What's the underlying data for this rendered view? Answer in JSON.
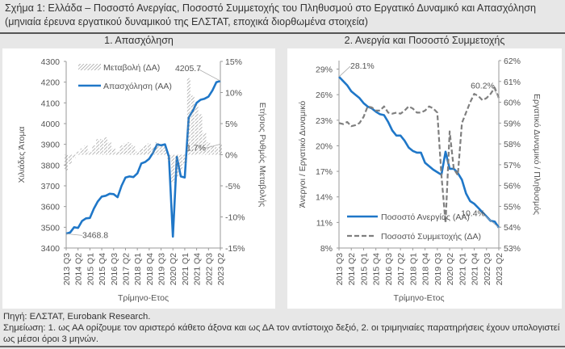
{
  "title": "Σχήμα 1: Ελλάδα – Ποσοστό Ανεργίας, Ποσοστό Συμμετοχής του Πληθυσμού στο Εργατικό Δυναμικό και Απασχόληση (μηνιαία έρευνα εργατικού δυναμικού της ΕΛΣΤΑΤ, εποχικά διορθωμένα στοιχεία)",
  "footer": {
    "source": "Πηγή: ΕΛΣΤΑΤ, Eurobank Research.",
    "note": "Σημείωση: 1. ως ΑΑ ορίζουμε τον αριστερό κάθετο άξονα και ως ΔΑ τον αντίστοιχο δεξιό, 2. οι τριμηνιαίες παρατηρήσεις έχουν υπολογιστεί ως μέσοι όροι 3 μηνών."
  },
  "colors": {
    "primary": "#1f77c8",
    "secondary": "#7f7f7f",
    "hatch": "#8c8c8c"
  },
  "chart_data": [
    {
      "type": "line",
      "title": "1. Απασχόληση",
      "xlabel": "Τρίμηνο-Ετος",
      "ylabel": "Χιλιάδες Άτομα",
      "y2label": "Ετήσιος Ρυθμός Μεταβολής",
      "ylim": [
        3400,
        4300
      ],
      "yticks": [
        3400,
        3500,
        3600,
        3700,
        3800,
        3900,
        4000,
        4100,
        4200,
        4300
      ],
      "y2lim": [
        -15,
        15
      ],
      "y2ticks": [
        "-15%",
        "-10%",
        "-5%",
        "0%",
        "5%",
        "10%",
        "15%"
      ],
      "y2tickvalues": [
        -15,
        -10,
        -5,
        0,
        5,
        10,
        15
      ],
      "xticks": [
        "2013 Q3",
        "2014 Q2",
        "2015 Q1",
        "2015 Q4",
        "2016 Q3",
        "2017 Q2",
        "2018 Q1",
        "2018 Q4",
        "2019 Q3",
        "2020 Q2",
        "2021 Q1",
        "2021 Q4",
        "2022 Q3",
        "2023 Q2"
      ],
      "legend": [
        "Μεταβολή (ΔΑ)",
        "Απασχόληση (ΑΑ)"
      ],
      "legend_position": "top-left",
      "series": [
        {
          "name": "Απασχόληση (ΑΑ)",
          "type": "line",
          "axis": "left",
          "values": [
            3468.8,
            3475,
            3500,
            3497,
            3530,
            3543,
            3545,
            3590,
            3625,
            3648,
            3652,
            3662,
            3660,
            3645,
            3700,
            3740,
            3745,
            3742,
            3760,
            3808,
            3815,
            3830,
            3860,
            3900,
            3895,
            3900,
            3840,
            3455,
            3840,
            3745,
            3740,
            4030,
            4060,
            4100,
            4115,
            4120,
            4130,
            4160,
            4200,
            4205.7
          ]
        },
        {
          "name": "Μεταβολή (ΔΑ)",
          "type": "bar",
          "axis": "right",
          "values": [
            -2.5,
            -1.5,
            -0.5,
            0.5,
            1.0,
            1.5,
            0.5,
            1.5,
            2.5,
            2.5,
            2.8,
            2.0,
            1.0,
            0.5,
            1.5,
            1.8,
            2.0,
            1.5,
            0.5,
            1.0,
            1.5,
            1.8,
            1.2,
            2.0,
            1.5,
            1.2,
            -1.0,
            -4.5,
            -3.5,
            -2.5,
            -1.5,
            12.3,
            9.5,
            8.0,
            6.5,
            3.5,
            2.0,
            1.5,
            1.2,
            1.7
          ]
        }
      ],
      "annotations": [
        {
          "text": "4205.7",
          "series": 0,
          "index": 39
        },
        {
          "text": "3468.8",
          "series": 0,
          "index": 0
        },
        {
          "text": "1.7%",
          "series": 1,
          "index": 39
        }
      ]
    },
    {
      "type": "line",
      "title": "2. Ανεργία και Ποσοστό Συμμετοχής",
      "xlabel": "Τρίμηνο-Ετος",
      "ylabel": "Άνεργοι / Εργατικό Δυναμικό",
      "y2label": "Εργατικό Δυναμικό / Πληθυσμός",
      "ylim": [
        8,
        30
      ],
      "yticks": [
        "8%",
        "11%",
        "14%",
        "17%",
        "20%",
        "23%",
        "26%",
        "29%"
      ],
      "ytickvalues": [
        8,
        11,
        14,
        17,
        20,
        23,
        26,
        29
      ],
      "y2lim": [
        53,
        62
      ],
      "y2ticks": [
        "53%",
        "54%",
        "55%",
        "56%",
        "57%",
        "58%",
        "59%",
        "60%",
        "61%",
        "62%"
      ],
      "y2tickvalues": [
        53,
        54,
        55,
        56,
        57,
        58,
        59,
        60,
        61,
        62
      ],
      "xticks": [
        "2013 Q3",
        "2014 Q2",
        "2015 Q1",
        "2015 Q4",
        "2016 Q3",
        "2017 Q2",
        "2018 Q1",
        "2018 Q4",
        "2019 Q3",
        "2020 Q2",
        "2021 Q1",
        "2021 Q4",
        "2022 Q3",
        "2023 Q2"
      ],
      "legend": [
        "Ποσοστό Ανεργίας (ΑΑ)",
        "Ποσοστό Συμμετοχής (ΔΑ)"
      ],
      "legend_position": "bottom-left",
      "series": [
        {
          "name": "Ποσοστό Ανεργίας (ΑΑ)",
          "type": "line",
          "axis": "left",
          "values": [
            28.1,
            27.6,
            27.1,
            26.4,
            26.0,
            25.6,
            25.0,
            24.6,
            24.4,
            24.0,
            23.7,
            23.6,
            22.8,
            21.8,
            21.2,
            21.2,
            20.6,
            19.8,
            19.4,
            19.2,
            19.2,
            18.0,
            17.6,
            17.2,
            16.9,
            16.6,
            19.3,
            17.3,
            17.3,
            16.8,
            16.0,
            14.4,
            13.5,
            13.2,
            12.7,
            12.2,
            11.7,
            11.2,
            11.1,
            10.4
          ]
        },
        {
          "name": "Ποσοστό Συμμετοχής (ΔΑ)",
          "type": "dashed",
          "axis": "right",
          "values": [
            59.0,
            58.95,
            59.05,
            58.85,
            58.9,
            59.0,
            59.3,
            59.8,
            59.75,
            59.6,
            59.6,
            59.8,
            59.5,
            59.45,
            59.5,
            59.45,
            59.6,
            59.8,
            59.7,
            59.5,
            59.5,
            59.6,
            59.8,
            59.7,
            59.5,
            56.5,
            54.2,
            58.6,
            56.8,
            56.5,
            59.0,
            59.5,
            60.0,
            60.4,
            60.3,
            60.1,
            60.2,
            60.4,
            60.7,
            60.2
          ]
        }
      ],
      "annotations": [
        {
          "text": "28.1%",
          "series": 0,
          "index": 0
        },
        {
          "text": "60.2%",
          "series": 1,
          "index": 39
        },
        {
          "text": "10.4%",
          "series": 0,
          "index": 39
        }
      ]
    }
  ]
}
